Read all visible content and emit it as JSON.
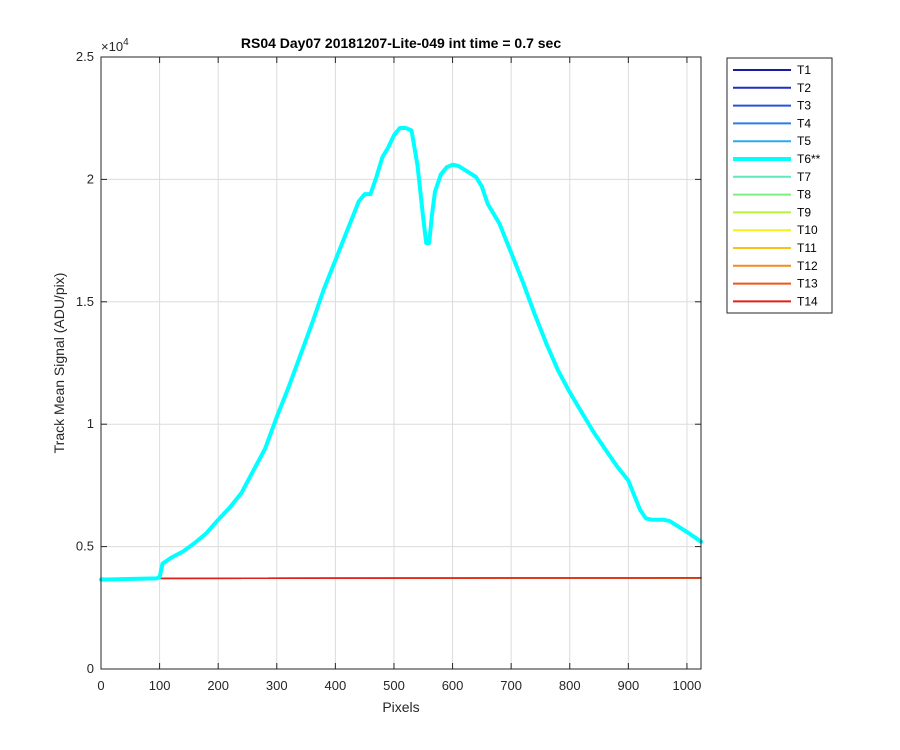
{
  "chart_data": {
    "type": "line",
    "title": "RS04 Day07 20181207-Lite-049 int time = 0.7 sec",
    "xlabel": "Pixels",
    "ylabel": "Track Mean Signal (ADU/pix)",
    "xlim": [
      0,
      1024
    ],
    "ylim": [
      0,
      25000
    ],
    "x_ticks": [
      0,
      100,
      200,
      300,
      400,
      500,
      600,
      700,
      800,
      900,
      1000
    ],
    "y_ticks": [
      0,
      5000,
      10000,
      15000,
      20000,
      25000
    ],
    "y_tick_labels": [
      "0",
      "0.5",
      "1",
      "1.5",
      "2",
      "2.5"
    ],
    "y_exponent_base": "×10",
    "y_exponent_power": "4",
    "grid": true,
    "legend_position": "outside-right",
    "series": [
      {
        "name": "T1",
        "color": "#1a1a9e",
        "x": [
          0,
          1024
        ],
        "y": [
          3700,
          3720
        ]
      },
      {
        "name": "T2",
        "color": "#1f2fbf",
        "x": [
          0,
          1024
        ],
        "y": [
          3700,
          3720
        ]
      },
      {
        "name": "T3",
        "color": "#2455d9",
        "x": [
          0,
          1024
        ],
        "y": [
          3700,
          3720
        ]
      },
      {
        "name": "T4",
        "color": "#2b7ee6",
        "x": [
          0,
          1024
        ],
        "y": [
          3700,
          3720
        ]
      },
      {
        "name": "T5",
        "color": "#2fa8eb",
        "x": [
          0,
          1024
        ],
        "y": [
          3700,
          3720
        ]
      },
      {
        "name": "T6**",
        "color": "#00ffff",
        "highlight": true,
        "x": [
          0,
          95,
          100,
          105,
          120,
          140,
          160,
          180,
          200,
          220,
          240,
          260,
          280,
          300,
          320,
          340,
          360,
          380,
          400,
          420,
          440,
          450,
          460,
          470,
          480,
          490,
          500,
          510,
          520,
          530,
          540,
          550,
          555,
          560,
          565,
          570,
          580,
          590,
          600,
          610,
          620,
          640,
          650,
          660,
          680,
          700,
          720,
          740,
          760,
          780,
          800,
          820,
          840,
          860,
          880,
          900,
          910,
          920,
          930,
          940,
          950,
          960,
          970,
          980,
          1000,
          1024
        ],
        "y": [
          3650,
          3700,
          3750,
          4300,
          4550,
          4800,
          5150,
          5550,
          6100,
          6600,
          7200,
          8100,
          9000,
          10300,
          11500,
          12800,
          14100,
          15500,
          16700,
          17900,
          19100,
          19400,
          19400,
          20100,
          20900,
          21300,
          21800,
          22100,
          22100,
          22000,
          20600,
          18400,
          17400,
          17400,
          18600,
          19500,
          20200,
          20500,
          20600,
          20550,
          20400,
          20100,
          19700,
          19000,
          18200,
          17000,
          15800,
          14500,
          13300,
          12200,
          11300,
          10500,
          9700,
          9000,
          8300,
          7700,
          7100,
          6500,
          6150,
          6100,
          6100,
          6100,
          6050,
          5900,
          5600,
          5200
        ]
      },
      {
        "name": "T7",
        "color": "#5fe8b8",
        "x": [
          0,
          1024
        ],
        "y": [
          3700,
          3720
        ]
      },
      {
        "name": "T8",
        "color": "#7ef07e",
        "x": [
          0,
          1024
        ],
        "y": [
          3700,
          3720
        ]
      },
      {
        "name": "T9",
        "color": "#b8f03a",
        "x": [
          0,
          1024
        ],
        "y": [
          3700,
          3720
        ]
      },
      {
        "name": "T10",
        "color": "#f5f01f",
        "x": [
          0,
          1024
        ],
        "y": [
          3700,
          3720
        ]
      },
      {
        "name": "T11",
        "color": "#f5c21a",
        "x": [
          0,
          1024
        ],
        "y": [
          3700,
          3720
        ]
      },
      {
        "name": "T12",
        "color": "#f58a1a",
        "x": [
          0,
          1024
        ],
        "y": [
          3700,
          3720
        ]
      },
      {
        "name": "T13",
        "color": "#f2531a",
        "x": [
          0,
          1024
        ],
        "y": [
          3700,
          3720
        ]
      },
      {
        "name": "T14",
        "color": "#e0201a",
        "x": [
          0,
          1024
        ],
        "y": [
          3700,
          3720
        ]
      }
    ]
  }
}
